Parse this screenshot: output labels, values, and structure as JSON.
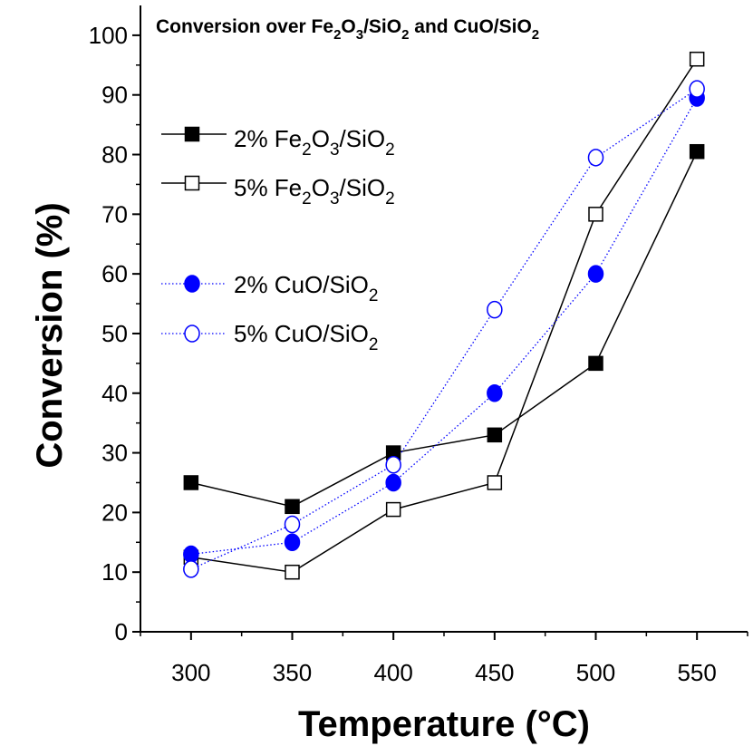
{
  "chart_data": {
    "type": "line",
    "title": "Conversion over Fe2O3/SiO2 and CuO/SiO2",
    "title_parts": {
      "prefix": "Conversion over Fe",
      "s1": "2",
      "o": "O",
      "s2": "3",
      "mid": "/SiO",
      "s3": "2",
      "and": " and CuO/SiO",
      "s4": "2"
    },
    "xlabel": "Temperature (°C)",
    "ylabel": "Conversion (%)",
    "x": [
      300,
      350,
      400,
      450,
      500,
      550
    ],
    "xlim": [
      275,
      575
    ],
    "ylim": [
      0,
      105
    ],
    "x_ticks": [
      300,
      350,
      400,
      450,
      500,
      550
    ],
    "y_ticks": [
      0,
      10,
      20,
      30,
      40,
      50,
      60,
      70,
      80,
      90,
      100
    ],
    "grid": false,
    "legend_position": "top-left",
    "series": [
      {
        "name": "2% Fe2O3/SiO2",
        "label_parts": {
          "a": "2% Fe",
          "b": "2",
          "c": "O",
          "d": "3",
          "e": "/SiO",
          "f": "2"
        },
        "marker": "square-filled",
        "line": "solid",
        "color": "#000000",
        "values": [
          25,
          21,
          30,
          33,
          45,
          80.5
        ]
      },
      {
        "name": "5% Fe2O3/SiO2",
        "label_parts": {
          "a": "5% Fe",
          "b": "2",
          "c": "O",
          "d": "3",
          "e": "/SiO",
          "f": "2"
        },
        "marker": "square-open",
        "line": "solid",
        "color": "#000000",
        "values": [
          12.5,
          10,
          20.5,
          25,
          70,
          96
        ]
      },
      {
        "name": "2% CuO/SiO2",
        "label_parts": {
          "a": "2% CuO/SiO",
          "b": "2"
        },
        "marker": "circle-filled",
        "line": "dotted",
        "color": "#0000ff",
        "values": [
          13,
          15,
          25,
          40,
          60,
          89.5
        ]
      },
      {
        "name": "5% CuO/SiO2",
        "label_parts": {
          "a": "5% CuO/SiO",
          "b": "2"
        },
        "marker": "circle-open",
        "line": "dotted",
        "color": "#0000ff",
        "values": [
          10.5,
          18,
          28,
          54,
          79.5,
          91
        ]
      }
    ]
  }
}
